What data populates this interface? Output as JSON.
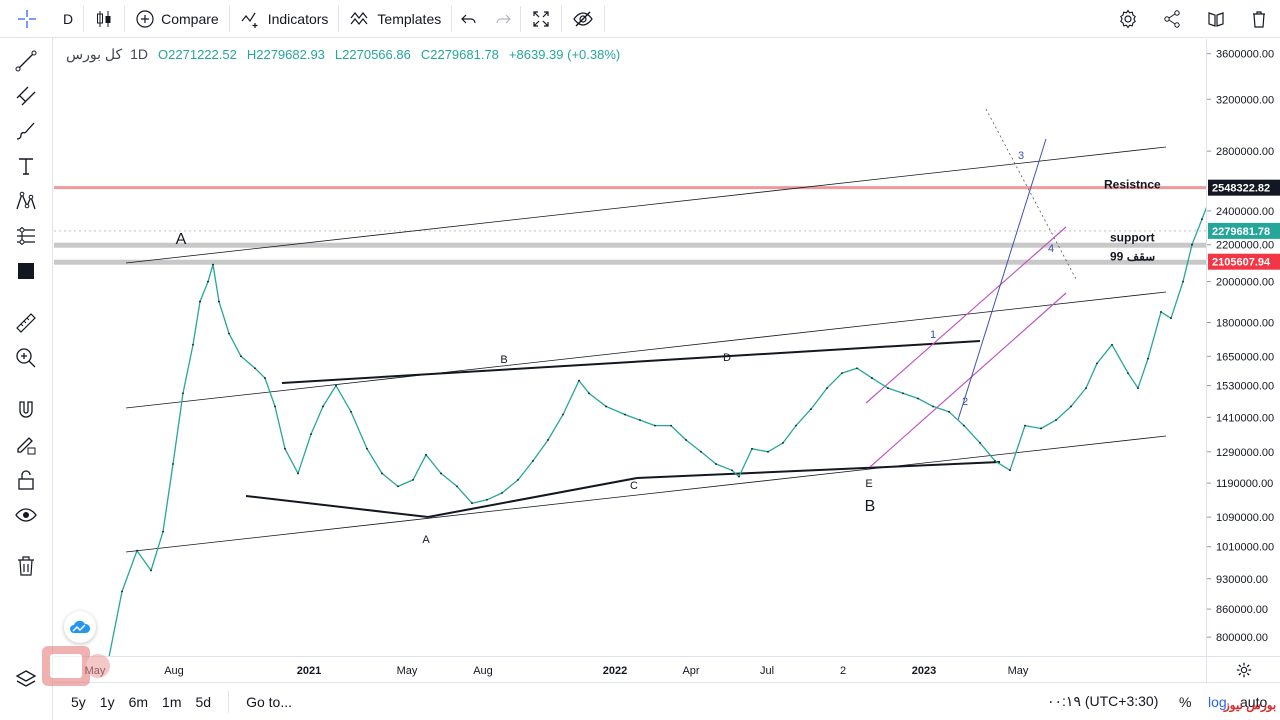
{
  "toolbar": {
    "interval": "D",
    "compare_label": "Compare",
    "indicators_label": "Indicators",
    "templates_label": "Templates"
  },
  "legend": {
    "symbol": "کل بورس",
    "timeframe": "1D",
    "open": "O2271222.52",
    "high": "H2279682.93",
    "low": "L2270566.86",
    "close": "C2279681.78",
    "change": "+8639.39 (+0.38%)"
  },
  "bottom": {
    "ranges": [
      "5y",
      "1y",
      "6m",
      "1m",
      "5d"
    ],
    "goto_label": "Go to...",
    "time_label": "۰۰:۱۹ (UTC+3:30)",
    "percent_label": "%",
    "log_label": "log",
    "auto_label": "auto"
  },
  "watermark": "بورس نیوز",
  "colors": {
    "up": "#26a69a",
    "resistance_line": "#ef9a9a",
    "support_band": "#c8c8c8",
    "channel_purple": "#c054c0",
    "trend_blue": "#3f51b5",
    "badge_red": "#f23645",
    "badge_green": "#26a69a",
    "badge_dark": "#131722"
  },
  "chart_data": {
    "type": "line",
    "series": [
      {
        "name": "کل بورس",
        "x": [
          "2020-04-22",
          "2020-05-05",
          "2020-05-20",
          "2020-06-03",
          "2020-06-15",
          "2020-06-25",
          "2020-07-05",
          "2020-07-15",
          "2020-07-22",
          "2020-07-30",
          "2020-08-04",
          "2020-08-10",
          "2020-08-20",
          "2020-09-01",
          "2020-09-15",
          "2020-09-25",
          "2020-10-05",
          "2020-10-15",
          "2020-10-28",
          "2020-11-10",
          "2020-11-22",
          "2020-12-05",
          "2020-12-20",
          "2021-01-05",
          "2021-01-20",
          "2021-02-05",
          "2021-02-20",
          "2021-03-05",
          "2021-03-20",
          "2021-04-05",
          "2021-04-20",
          "2021-05-05",
          "2021-05-20",
          "2021-06-05",
          "2021-06-20",
          "2021-07-05",
          "2021-07-20",
          "2021-08-05",
          "2021-08-15",
          "2021-09-01",
          "2021-09-20",
          "2021-10-05",
          "2021-10-20",
          "2021-11-05",
          "2021-11-20",
          "2021-12-05",
          "2021-12-20",
          "2022-01-05",
          "2022-01-12",
          "2022-01-25",
          "2022-02-10",
          "2022-02-25",
          "2022-03-10",
          "2022-03-25",
          "2022-04-10",
          "2022-04-25",
          "2022-05-10",
          "2022-05-25",
          "2022-06-10",
          "2022-06-25",
          "2022-07-10",
          "2022-07-25",
          "2022-08-10",
          "2022-08-25",
          "2022-09-10",
          "2022-09-25",
          "2022-10-10",
          "2022-10-25",
          "2022-11-10",
          "2022-11-25",
          "2022-12-10",
          "2022-12-25",
          "2023-01-05",
          "2023-01-20",
          "2023-02-05",
          "2023-02-15",
          "2023-02-25",
          "2023-03-10",
          "2023-03-20",
          "2023-04-01",
          "2023-04-10",
          "2023-04-20",
          "2023-05-01",
          "2023-05-06",
          "2023-05-15",
          "2023-05-25",
          "2023-06-03"
        ],
        "values": [
          760000,
          900000,
          1000000,
          950000,
          1050000,
          1250000,
          1500000,
          1700000,
          1900000,
          2000000,
          2090000,
          1900000,
          1750000,
          1650000,
          1600000,
          1560000,
          1450000,
          1300000,
          1220000,
          1350000,
          1450000,
          1530000,
          1430000,
          1300000,
          1220000,
          1180000,
          1200000,
          1280000,
          1220000,
          1180000,
          1130000,
          1140000,
          1160000,
          1200000,
          1260000,
          1330000,
          1420000,
          1550000,
          1500000,
          1450000,
          1420000,
          1400000,
          1380000,
          1380000,
          1330000,
          1290000,
          1250000,
          1230000,
          1210000,
          1300000,
          1290000,
          1320000,
          1380000,
          1440000,
          1520000,
          1580000,
          1600000,
          1560000,
          1520000,
          1500000,
          1480000,
          1450000,
          1430000,
          1380000,
          1320000,
          1260000,
          1230000,
          1380000,
          1370000,
          1400000,
          1450000,
          1520000,
          1620000,
          1700000,
          1580000,
          1520000,
          1640000,
          1850000,
          1820000,
          2000000,
          2200000,
          2350000,
          2530000,
          2450000,
          2330000,
          2270000,
          2280000
        ]
      }
    ],
    "x_ticks": [
      "May",
      "Aug",
      "2021",
      "May",
      "Aug",
      "2022",
      "Apr",
      "Jul",
      "2",
      "2023",
      "May"
    ],
    "y_ticks": [
      3600000,
      3200000,
      2800000,
      2400000,
      2200000,
      2000000,
      1800000,
      1650000,
      1530000,
      1410000,
      1290000,
      1190000,
      1090000,
      1010000,
      930000,
      860000,
      800000
    ],
    "y_tick_labels": [
      "3600000.00",
      "3200000.00",
      "2800000.00",
      "2400000.00",
      "2200000.00",
      "2000000.00",
      "1800000.00",
      "1650000.00",
      "1530000.00",
      "1410000.00",
      "1290000.00",
      "1190000.00",
      "1090000.00",
      "1010000.00",
      "930000.00",
      "860000.00",
      "800000.00"
    ],
    "ylim": [
      770000,
      3700000
    ],
    "log_scale": true,
    "grid": false,
    "price_badges": [
      {
        "value": 2548322.82,
        "label": "2548322.82",
        "style": "dark"
      },
      {
        "value": 2279681.78,
        "label": "2279681.78",
        "style": "green"
      },
      {
        "value": 2105607.94,
        "label": "2105607.94",
        "style": "red"
      }
    ],
    "annotations": [
      {
        "text": "Resistnce",
        "value": 2548322.82
      },
      {
        "text": "support",
        "value": 2200000
      },
      {
        "text": "سقف 99",
        "value": 2105607.94
      }
    ],
    "wave_labels": [
      "A",
      "B",
      "C",
      "D",
      "E",
      "A",
      "B",
      "1",
      "2",
      "3",
      "4"
    ]
  }
}
